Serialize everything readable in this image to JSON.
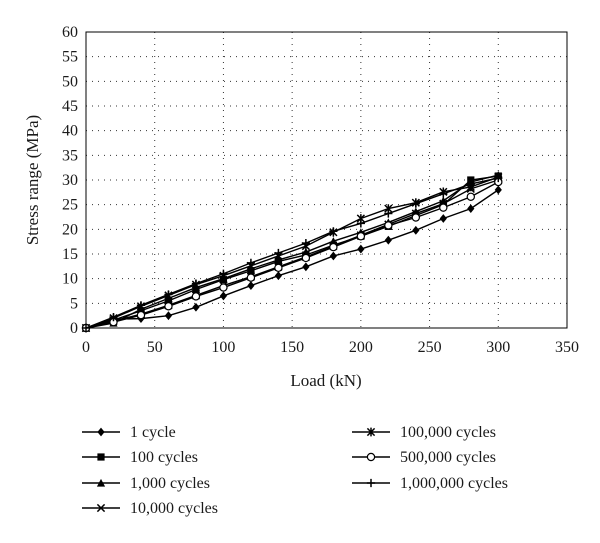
{
  "chart_data": {
    "type": "line",
    "xlabel": "Load (kN)",
    "ylabel": "Stress range (MPa)",
    "xlim": [
      0,
      350
    ],
    "ylim": [
      0,
      60
    ],
    "xticks": [
      0,
      50,
      100,
      150,
      200,
      250,
      300,
      350
    ],
    "yticks": [
      0,
      5,
      10,
      15,
      20,
      25,
      30,
      35,
      40,
      45,
      50,
      55,
      60
    ],
    "grid": "dotted",
    "legend_position": "below",
    "x": [
      0,
      20,
      40,
      60,
      80,
      100,
      120,
      140,
      160,
      180,
      200,
      220,
      240,
      260,
      280,
      300
    ],
    "series": [
      {
        "name": "1 cycle",
        "marker": "diamond",
        "values": [
          0,
          1.8,
          1.9,
          2.5,
          4.2,
          6.5,
          8.6,
          10.6,
          12.4,
          14.6,
          16.0,
          17.8,
          19.8,
          22.2,
          24.2,
          28.0
        ]
      },
      {
        "name": "100 cycles",
        "marker": "square",
        "values": [
          0,
          1.6,
          3.5,
          5.5,
          7.8,
          9.8,
          11.6,
          13.5,
          14.8,
          16.8,
          18.6,
          20.6,
          22.8,
          25.0,
          30.0,
          30.8
        ]
      },
      {
        "name": "1,000 cycles",
        "marker": "triangle",
        "values": [
          0,
          1.0,
          3.8,
          6.0,
          8.2,
          10.0,
          12.0,
          13.8,
          15.4,
          17.6,
          19.4,
          21.4,
          23.6,
          25.8,
          29.6,
          31.0
        ]
      },
      {
        "name": "10,000 cycles",
        "marker": "x",
        "values": [
          0,
          1.4,
          2.8,
          4.6,
          6.6,
          8.6,
          10.4,
          12.4,
          14.4,
          16.6,
          18.8,
          21.0,
          23.2,
          25.2,
          28.2,
          30.0
        ]
      },
      {
        "name": "100,000 cycles",
        "marker": "star",
        "values": [
          0,
          2.0,
          4.4,
          6.6,
          8.8,
          10.6,
          12.6,
          14.6,
          16.6,
          19.4,
          22.2,
          24.2,
          25.4,
          27.6,
          28.6,
          30.6
        ]
      },
      {
        "name": "500,000 cycles",
        "marker": "circle",
        "values": [
          0,
          1.2,
          2.6,
          4.4,
          6.4,
          8.2,
          10.2,
          12.2,
          14.2,
          16.4,
          18.6,
          20.8,
          22.4,
          24.4,
          26.6,
          29.6
        ]
      },
      {
        "name": "1,000,000 cycles",
        "marker": "plus",
        "values": [
          0,
          2.2,
          4.6,
          6.8,
          9.0,
          11.0,
          13.2,
          15.2,
          17.2,
          19.6,
          21.2,
          23.2,
          25.2,
          27.2,
          29.2,
          30.4
        ]
      }
    ]
  }
}
